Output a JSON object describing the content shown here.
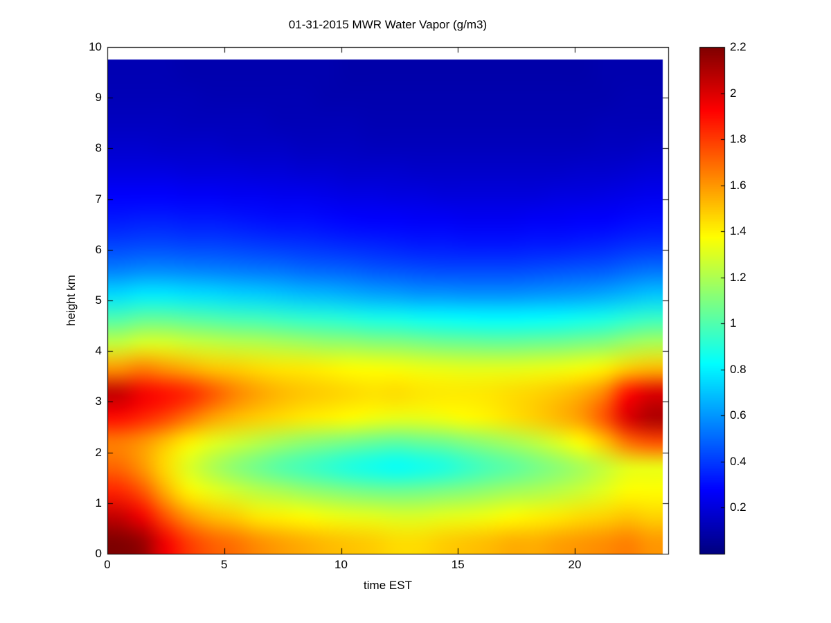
{
  "figure": {
    "title": "01-31-2015 MWR Water Vapor (g/m3)",
    "xlabel": "time EST",
    "ylabel": "height km",
    "background": "#ffffff",
    "axis_color": "#000000"
  },
  "chart_data": {
    "type": "heatmap",
    "title": "01-31-2015 MWR Water Vapor (g/m3)",
    "xlabel": "time EST",
    "ylabel": "height km",
    "colormap": "jet",
    "grid": false,
    "xlim": [
      0,
      24
    ],
    "ylim": [
      0,
      10
    ],
    "clim": [
      0,
      2.2
    ],
    "x_ticks": [
      0,
      5,
      10,
      15,
      20
    ],
    "y_ticks": [
      0,
      1,
      2,
      3,
      4,
      5,
      6,
      7,
      8,
      9,
      10
    ],
    "colorbar_ticks": [
      0.2,
      0.4,
      0.6,
      0.8,
      1,
      1.2,
      1.4,
      1.6,
      1.8,
      2,
      2.2
    ],
    "x_hours": [
      0,
      1,
      2,
      3,
      4,
      5,
      6,
      7,
      8,
      9,
      10,
      11,
      12,
      13,
      14,
      15,
      16,
      17,
      18,
      19,
      20,
      21,
      22,
      23
    ],
    "heights_km": [
      0,
      0.5,
      1,
      1.5,
      2,
      2.5,
      3,
      3.5,
      4,
      4.5,
      5,
      5.5,
      6,
      6.5,
      7,
      7.5,
      8,
      8.5,
      9,
      9.5
    ],
    "values_g_m3": [
      [
        2.2,
        2.15,
        1.95,
        1.8,
        1.72,
        1.68,
        1.62,
        1.58,
        1.55,
        1.52,
        1.5,
        1.48,
        1.45,
        1.45,
        1.48,
        1.5,
        1.52,
        1.55,
        1.55,
        1.58,
        1.6,
        1.62,
        1.65,
        1.6
      ],
      [
        2.05,
        1.95,
        1.75,
        1.6,
        1.52,
        1.48,
        1.42,
        1.4,
        1.38,
        1.35,
        1.33,
        1.32,
        1.3,
        1.3,
        1.32,
        1.33,
        1.35,
        1.38,
        1.4,
        1.42,
        1.45,
        1.47,
        1.5,
        1.47
      ],
      [
        1.85,
        1.75,
        1.55,
        1.4,
        1.33,
        1.28,
        1.23,
        1.2,
        1.16,
        1.13,
        1.1,
        1.08,
        1.07,
        1.08,
        1.1,
        1.12,
        1.15,
        1.18,
        1.2,
        1.23,
        1.27,
        1.32,
        1.38,
        1.38
      ],
      [
        1.7,
        1.6,
        1.45,
        1.3,
        1.2,
        1.12,
        1.06,
        1.0,
        0.96,
        0.92,
        0.88,
        0.85,
        0.83,
        0.85,
        0.88,
        0.93,
        0.98,
        1.02,
        1.07,
        1.12,
        1.18,
        1.25,
        1.32,
        1.33
      ],
      [
        1.65,
        1.6,
        1.5,
        1.4,
        1.32,
        1.27,
        1.22,
        1.17,
        1.13,
        1.1,
        1.07,
        1.04,
        1.02,
        1.04,
        1.06,
        1.1,
        1.14,
        1.18,
        1.23,
        1.3,
        1.38,
        1.5,
        1.68,
        1.75
      ],
      [
        1.9,
        1.85,
        1.78,
        1.68,
        1.58,
        1.52,
        1.48,
        1.45,
        1.42,
        1.4,
        1.38,
        1.35,
        1.33,
        1.33,
        1.35,
        1.38,
        1.4,
        1.44,
        1.48,
        1.53,
        1.6,
        1.75,
        2.0,
        2.1
      ],
      [
        2.05,
        1.95,
        1.9,
        1.85,
        1.75,
        1.65,
        1.58,
        1.53,
        1.5,
        1.48,
        1.46,
        1.44,
        1.45,
        1.43,
        1.42,
        1.42,
        1.43,
        1.45,
        1.47,
        1.5,
        1.55,
        1.65,
        1.9,
        2.0
      ],
      [
        1.6,
        1.65,
        1.6,
        1.55,
        1.5,
        1.48,
        1.45,
        1.43,
        1.42,
        1.4,
        1.38,
        1.37,
        1.36,
        1.34,
        1.33,
        1.32,
        1.32,
        1.32,
        1.33,
        1.34,
        1.36,
        1.4,
        1.48,
        1.52
      ],
      [
        1.25,
        1.3,
        1.3,
        1.27,
        1.25,
        1.23,
        1.22,
        1.2,
        1.18,
        1.16,
        1.15,
        1.13,
        1.12,
        1.1,
        1.08,
        1.07,
        1.06,
        1.06,
        1.07,
        1.08,
        1.1,
        1.12,
        1.17,
        1.2
      ],
      [
        1.0,
        1.04,
        1.04,
        1.02,
        1.0,
        0.98,
        0.97,
        0.95,
        0.93,
        0.92,
        0.9,
        0.88,
        0.87,
        0.85,
        0.84,
        0.83,
        0.82,
        0.82,
        0.83,
        0.84,
        0.86,
        0.88,
        0.92,
        0.95
      ],
      [
        0.75,
        0.78,
        0.78,
        0.76,
        0.75,
        0.73,
        0.72,
        0.7,
        0.68,
        0.67,
        0.65,
        0.63,
        0.62,
        0.6,
        0.6,
        0.59,
        0.59,
        0.59,
        0.6,
        0.61,
        0.62,
        0.64,
        0.67,
        0.7
      ],
      [
        0.55,
        0.57,
        0.57,
        0.56,
        0.55,
        0.54,
        0.53,
        0.52,
        0.5,
        0.49,
        0.48,
        0.46,
        0.45,
        0.44,
        0.43,
        0.43,
        0.43,
        0.43,
        0.44,
        0.45,
        0.46,
        0.47,
        0.5,
        0.52
      ],
      [
        0.42,
        0.43,
        0.43,
        0.42,
        0.42,
        0.41,
        0.4,
        0.39,
        0.38,
        0.37,
        0.36,
        0.35,
        0.34,
        0.33,
        0.33,
        0.32,
        0.32,
        0.32,
        0.33,
        0.33,
        0.34,
        0.35,
        0.37,
        0.38
      ],
      [
        0.33,
        0.34,
        0.34,
        0.33,
        0.33,
        0.32,
        0.31,
        0.3,
        0.3,
        0.29,
        0.28,
        0.27,
        0.27,
        0.26,
        0.26,
        0.25,
        0.25,
        0.25,
        0.26,
        0.26,
        0.27,
        0.27,
        0.29,
        0.3
      ],
      [
        0.27,
        0.27,
        0.27,
        0.26,
        0.26,
        0.25,
        0.25,
        0.24,
        0.24,
        0.23,
        0.22,
        0.22,
        0.21,
        0.21,
        0.2,
        0.2,
        0.2,
        0.2,
        0.2,
        0.21,
        0.21,
        0.22,
        0.23,
        0.24
      ],
      [
        0.21,
        0.21,
        0.21,
        0.2,
        0.2,
        0.2,
        0.19,
        0.19,
        0.18,
        0.18,
        0.17,
        0.17,
        0.17,
        0.16,
        0.16,
        0.16,
        0.16,
        0.16,
        0.16,
        0.16,
        0.17,
        0.17,
        0.18,
        0.19
      ],
      [
        0.17,
        0.17,
        0.16,
        0.16,
        0.16,
        0.15,
        0.15,
        0.15,
        0.14,
        0.14,
        0.14,
        0.13,
        0.13,
        0.13,
        0.13,
        0.13,
        0.13,
        0.13,
        0.13,
        0.13,
        0.13,
        0.14,
        0.14,
        0.15
      ],
      [
        0.14,
        0.14,
        0.14,
        0.13,
        0.13,
        0.13,
        0.13,
        0.12,
        0.12,
        0.12,
        0.12,
        0.11,
        0.11,
        0.11,
        0.11,
        0.11,
        0.11,
        0.11,
        0.11,
        0.11,
        0.11,
        0.12,
        0.12,
        0.12
      ],
      [
        0.12,
        0.12,
        0.12,
        0.12,
        0.11,
        0.11,
        0.11,
        0.11,
        0.11,
        0.1,
        0.1,
        0.1,
        0.1,
        0.1,
        0.1,
        0.1,
        0.1,
        0.1,
        0.1,
        0.1,
        0.1,
        0.1,
        0.11,
        0.11
      ],
      [
        0.11,
        0.11,
        0.11,
        0.1,
        0.1,
        0.1,
        0.1,
        0.1,
        0.1,
        0.1,
        0.09,
        0.09,
        0.09,
        0.09,
        0.09,
        0.09,
        0.09,
        0.09,
        0.09,
        0.09,
        0.09,
        0.1,
        0.1,
        0.1
      ]
    ],
    "data_extent": {
      "x": [
        0,
        23.75
      ],
      "y": [
        0,
        9.75
      ]
    }
  }
}
